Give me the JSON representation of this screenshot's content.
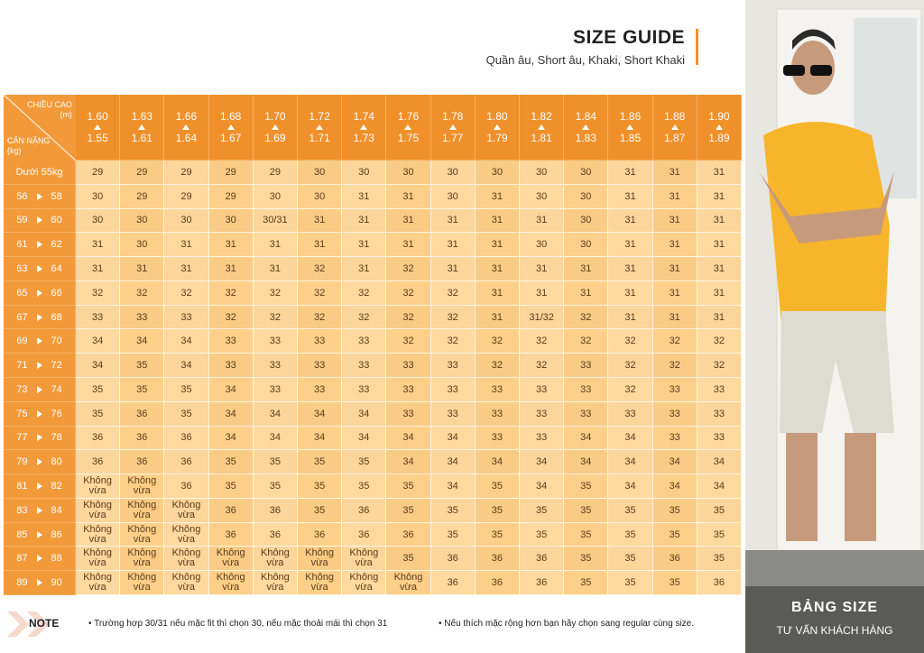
{
  "header": {
    "title": "SIZE GUIDE",
    "subtitle": "Quần âu, Short âu, Khaki, Short Khaki"
  },
  "table": {
    "corner": {
      "height_label": "CHIỀU CAO",
      "height_unit": "(m)",
      "weight_label": "CÂN NẶNG",
      "weight_unit": "(kg)"
    },
    "columns": [
      {
        "top": "1.60",
        "bottom": "1.55"
      },
      {
        "top": "1.63",
        "bottom": "1.61"
      },
      {
        "top": "1.66",
        "bottom": "1.64"
      },
      {
        "top": "1.68",
        "bottom": "1.67"
      },
      {
        "top": "1.70",
        "bottom": "1.69"
      },
      {
        "top": "1.72",
        "bottom": "1.71"
      },
      {
        "top": "1.74",
        "bottom": "1.73"
      },
      {
        "top": "1.76",
        "bottom": "1.75"
      },
      {
        "top": "1.78",
        "bottom": "1.77"
      },
      {
        "top": "1.80",
        "bottom": "1.79"
      },
      {
        "top": "1.82",
        "bottom": "1.81"
      },
      {
        "top": "1.84",
        "bottom": "1.83"
      },
      {
        "top": "1.86",
        "bottom": "1.85"
      },
      {
        "top": "1.88",
        "bottom": "1.87"
      },
      {
        "top": "1.90",
        "bottom": "1.89"
      }
    ],
    "rows": [
      {
        "label": "Dưới 55kg",
        "cells": [
          "29",
          "29",
          "29",
          "29",
          "29",
          "30",
          "30",
          "30",
          "30",
          "30",
          "30",
          "30",
          "31",
          "31",
          "31"
        ]
      },
      {
        "from": "56",
        "to": "58",
        "cells": [
          "30",
          "29",
          "29",
          "29",
          "30",
          "30",
          "31",
          "31",
          "30",
          "31",
          "30",
          "30",
          "31",
          "31",
          "31"
        ]
      },
      {
        "from": "59",
        "to": "60",
        "cells": [
          "30",
          "30",
          "30",
          "30",
          "30/31",
          "31",
          "31",
          "31",
          "31",
          "31",
          "31",
          "30",
          "31",
          "31",
          "31"
        ]
      },
      {
        "from": "61",
        "to": "62",
        "cells": [
          "31",
          "30",
          "31",
          "31",
          "31",
          "31",
          "31",
          "31",
          "31",
          "31",
          "30",
          "30",
          "31",
          "31",
          "31"
        ]
      },
      {
        "from": "63",
        "to": "64",
        "cells": [
          "31",
          "31",
          "31",
          "31",
          "31",
          "32",
          "31",
          "32",
          "31",
          "31",
          "31",
          "31",
          "31",
          "31",
          "31"
        ]
      },
      {
        "from": "65",
        "to": "66",
        "cells": [
          "32",
          "32",
          "32",
          "32",
          "32",
          "32",
          "32",
          "32",
          "32",
          "31",
          "31",
          "31",
          "31",
          "31",
          "31"
        ]
      },
      {
        "from": "67",
        "to": "68",
        "cells": [
          "33",
          "33",
          "33",
          "32",
          "32",
          "32",
          "32",
          "32",
          "32",
          "31",
          "31/32",
          "32",
          "31",
          "31",
          "31"
        ]
      },
      {
        "from": "69",
        "to": "70",
        "cells": [
          "34",
          "34",
          "34",
          "33",
          "33",
          "33",
          "33",
          "32",
          "32",
          "32",
          "32",
          "32",
          "32",
          "32",
          "32"
        ]
      },
      {
        "from": "71",
        "to": "72",
        "cells": [
          "34",
          "35",
          "34",
          "33",
          "33",
          "33",
          "33",
          "33",
          "33",
          "32",
          "32",
          "33",
          "32",
          "32",
          "32"
        ]
      },
      {
        "from": "73",
        "to": "74",
        "cells": [
          "35",
          "35",
          "35",
          "34",
          "33",
          "33",
          "33",
          "33",
          "33",
          "33",
          "33",
          "33",
          "32",
          "33",
          "33"
        ]
      },
      {
        "from": "75",
        "to": "76",
        "cells": [
          "35",
          "36",
          "35",
          "34",
          "34",
          "34",
          "34",
          "33",
          "33",
          "33",
          "33",
          "33",
          "33",
          "33",
          "33"
        ]
      },
      {
        "from": "77",
        "to": "78",
        "cells": [
          "36",
          "36",
          "36",
          "34",
          "34",
          "34",
          "34",
          "34",
          "34",
          "33",
          "33",
          "34",
          "34",
          "33",
          "33"
        ]
      },
      {
        "from": "79",
        "to": "80",
        "cells": [
          "36",
          "36",
          "36",
          "35",
          "35",
          "35",
          "35",
          "34",
          "34",
          "34",
          "34",
          "34",
          "34",
          "34",
          "34"
        ]
      },
      {
        "from": "81",
        "to": "82",
        "cells": [
          "Không vừa",
          "Không vừa",
          "36",
          "35",
          "35",
          "35",
          "35",
          "35",
          "34",
          "35",
          "34",
          "35",
          "34",
          "34",
          "34"
        ]
      },
      {
        "from": "83",
        "to": "84",
        "cells": [
          "Không vừa",
          "Không vừa",
          "Không vừa",
          "36",
          "36",
          "35",
          "36",
          "35",
          "35",
          "35",
          "35",
          "35",
          "35",
          "35",
          "35"
        ]
      },
      {
        "from": "85",
        "to": "86",
        "cells": [
          "Không vừa",
          "Không vừa",
          "Không vừa",
          "36",
          "36",
          "36",
          "36",
          "36",
          "35",
          "35",
          "35",
          "35",
          "35",
          "35",
          "35"
        ]
      },
      {
        "from": "87",
        "to": "88",
        "cells": [
          "Không vừa",
          "Không vừa",
          "Không vừa",
          "Không vừa",
          "Không vừa",
          "Không vừa",
          "Không vừa",
          "35",
          "36",
          "36",
          "36",
          "35",
          "35",
          "36",
          "35"
        ]
      },
      {
        "from": "89",
        "to": "90",
        "cells": [
          "Không vừa",
          "Không vừa",
          "Không vừa",
          "Không vừa",
          "Không vừa",
          "Không vừa",
          "Không vừa",
          "Không vừa",
          "36",
          "36",
          "36",
          "35",
          "35",
          "35",
          "36"
        ]
      }
    ]
  },
  "note": {
    "label": "NOTE",
    "items": [
      "Trường hợp 30/31 nếu mặc fit thì chọn 30, nếu mặc thoải mái thì chọn 31",
      "Nếu thích mặc rộng hơn bạn hãy chọn sang regular cùng size."
    ]
  },
  "photo": {
    "title": "BẢNG SIZE",
    "subtitle": "TƯ VẤN KHÁCH HÀNG"
  }
}
